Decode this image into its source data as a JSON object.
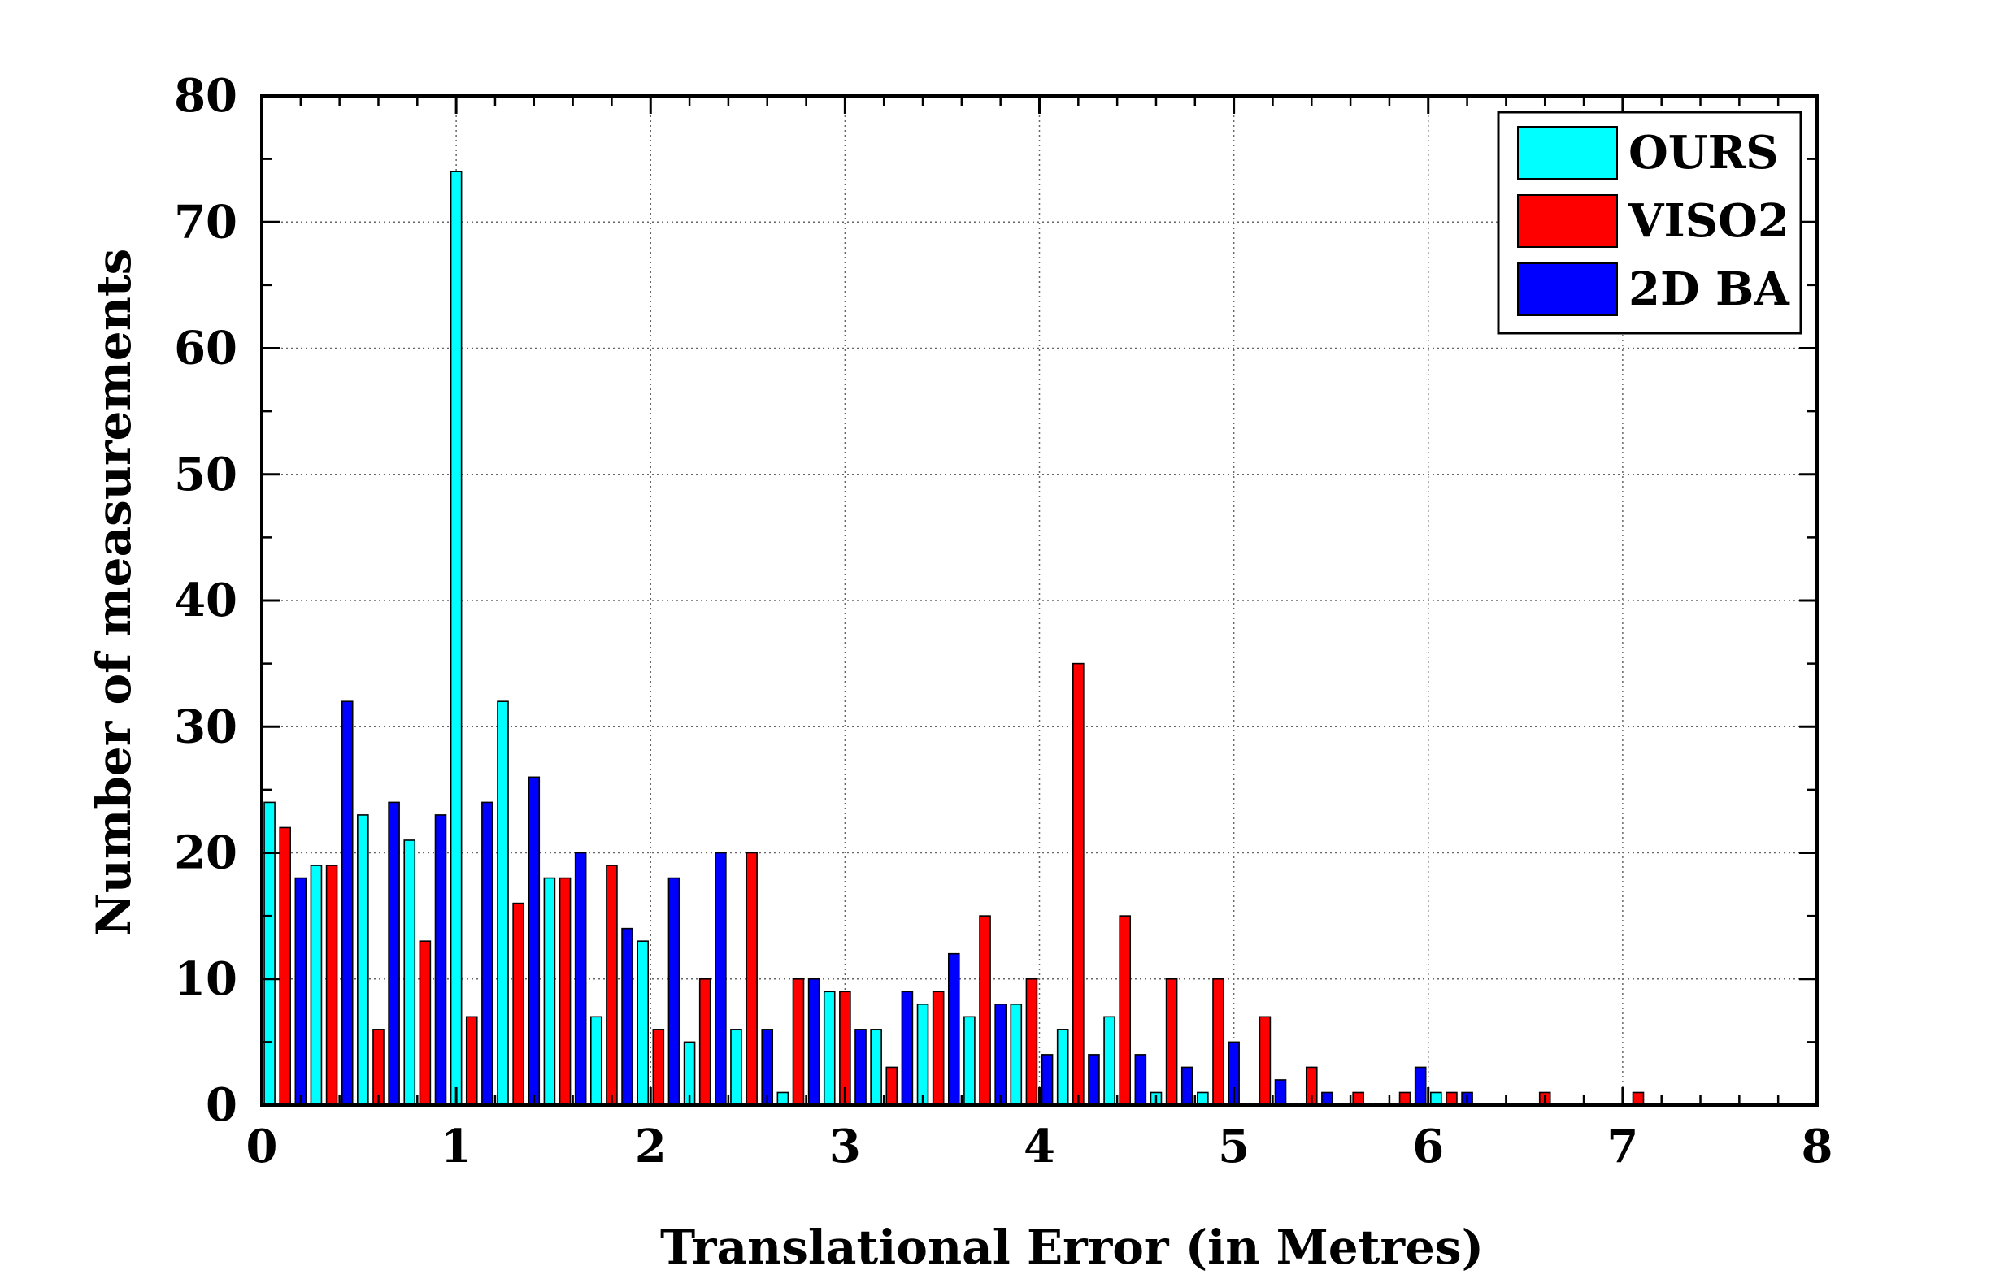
{
  "chart_data": {
    "type": "bar",
    "xlabel": "Translational Error (in Metres)",
    "ylabel": "Number of measurements",
    "xlim": [
      0,
      8
    ],
    "ylim": [
      0,
      80
    ],
    "xticks": [
      "0",
      "1",
      "2",
      "3",
      "4",
      "5",
      "6",
      "7",
      "8"
    ],
    "yticks": [
      "0",
      "10",
      "20",
      "30",
      "40",
      "50",
      "60",
      "70",
      "80"
    ],
    "grid": true,
    "legend_position": "top-right",
    "bin_width": 0.24,
    "bin_centers": [
      0.12,
      0.36,
      0.6,
      0.84,
      1.08,
      1.32,
      1.56,
      1.8,
      2.04,
      2.28,
      2.52,
      2.76,
      3.0,
      3.24,
      3.48,
      3.72,
      3.96,
      4.2,
      4.44,
      4.68,
      4.92,
      5.16,
      5.4,
      5.64,
      5.88,
      6.12,
      6.36,
      6.6,
      6.84,
      7.08
    ],
    "series": [
      {
        "name": "OURS",
        "color": "#00ffff",
        "values": [
          24,
          19,
          23,
          21,
          74,
          32,
          18,
          7,
          13,
          5,
          6,
          1,
          9,
          6,
          8,
          7,
          8,
          6,
          7,
          1,
          1,
          0,
          0,
          0,
          0,
          1,
          0,
          0,
          0,
          0
        ]
      },
      {
        "name": "VISO2",
        "color": "#ff0000",
        "values": [
          22,
          19,
          6,
          13,
          7,
          16,
          18,
          19,
          6,
          10,
          20,
          10,
          9,
          3,
          9,
          15,
          10,
          35,
          15,
          10,
          10,
          7,
          3,
          1,
          1,
          1,
          0,
          1,
          0,
          1
        ]
      },
      {
        "name": "2D BA",
        "color": "#0000ff",
        "values": [
          18,
          32,
          24,
          23,
          24,
          26,
          20,
          14,
          18,
          20,
          6,
          10,
          6,
          9,
          12,
          8,
          4,
          4,
          4,
          3,
          5,
          2,
          1,
          0,
          3,
          1,
          0,
          0,
          0,
          0
        ]
      }
    ]
  }
}
